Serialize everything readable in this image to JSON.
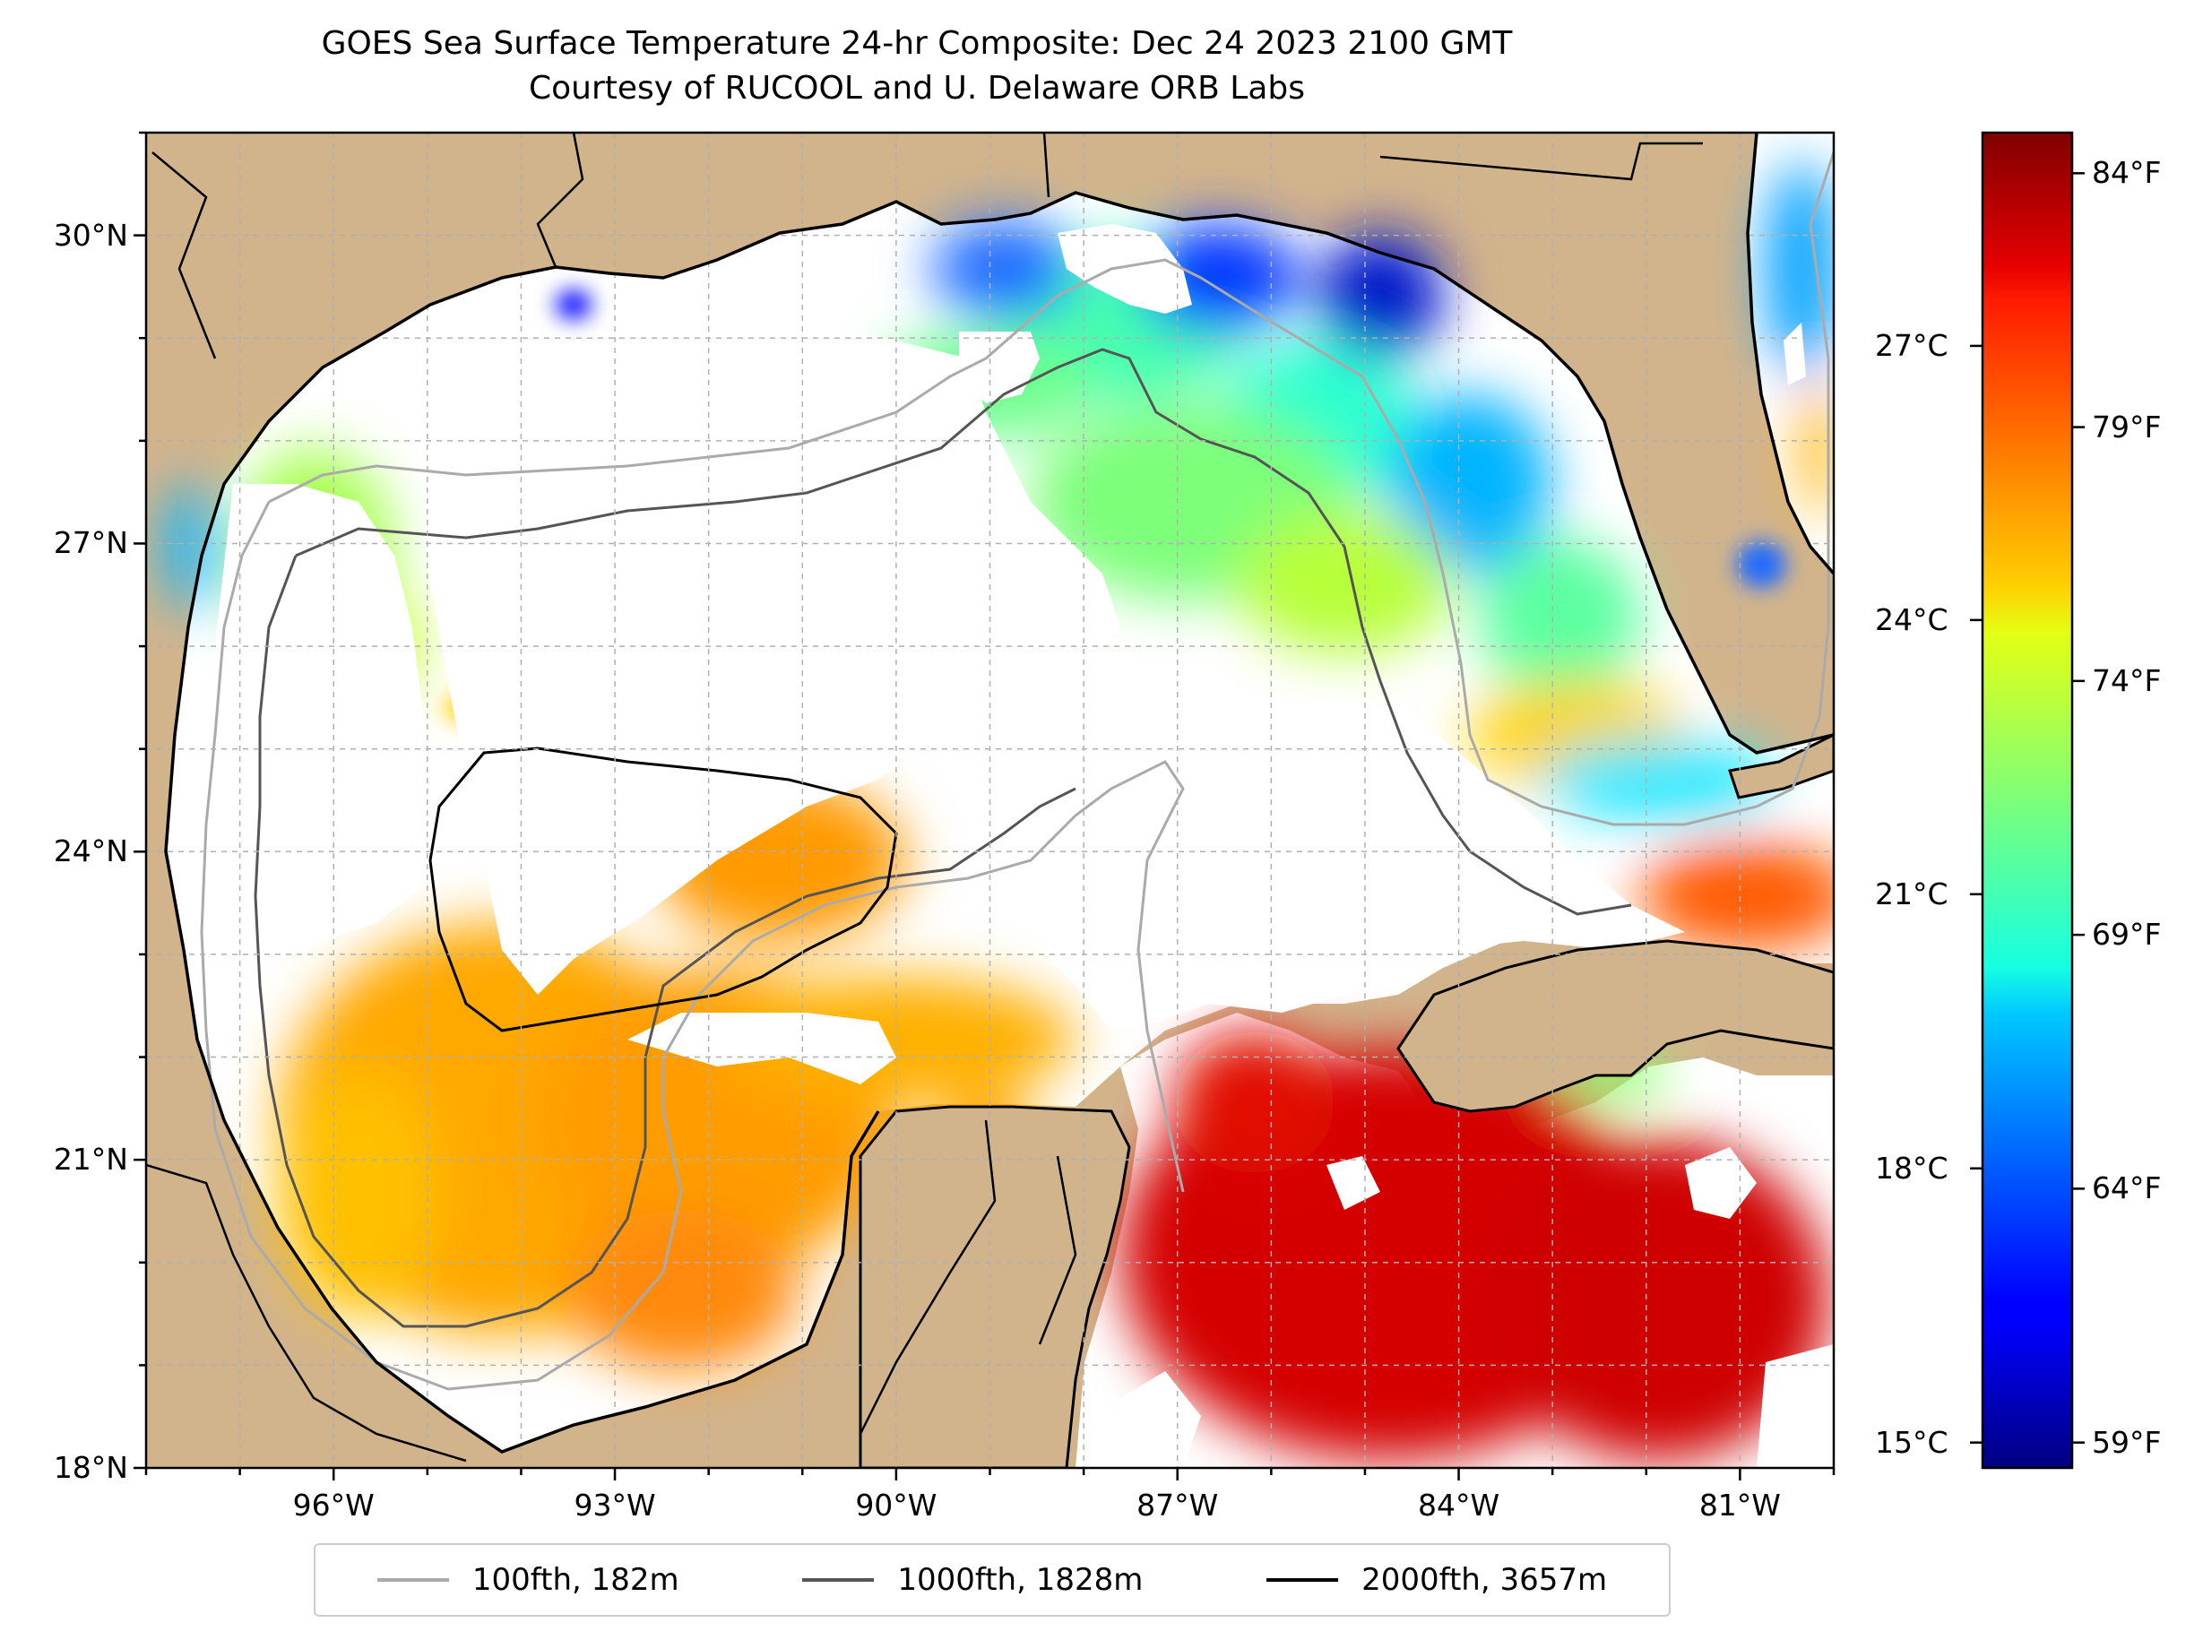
{
  "title": {
    "line1": "GOES Sea Surface Temperature 24-hr Composite: Dec 24 2023 2100 GMT",
    "line2": "Courtesy of RUCOOL and U. Delaware ORB Labs"
  },
  "map": {
    "extent": {
      "lon_min": -98.0,
      "lon_max": -80.0,
      "lat_min": 18.0,
      "lat_max": 31.0
    },
    "lat_ticks": [
      {
        "value": 18,
        "label": "18°N"
      },
      {
        "value": 21,
        "label": "21°N"
      },
      {
        "value": 24,
        "label": "24°N"
      },
      {
        "value": 27,
        "label": "27°N"
      },
      {
        "value": 30,
        "label": "30°N"
      }
    ],
    "lon_ticks": [
      {
        "value": -96,
        "label": "96°W"
      },
      {
        "value": -93,
        "label": "93°W"
      },
      {
        "value": -90,
        "label": "90°W"
      },
      {
        "value": -87,
        "label": "87°W"
      },
      {
        "value": -84,
        "label": "84°W"
      },
      {
        "value": -81,
        "label": "81°W"
      }
    ],
    "colors": {
      "land": "#d2b48c",
      "no_data": "#ffffff",
      "grid": "#b0b0b0",
      "coast": "#000000"
    }
  },
  "colorbar": {
    "colormap": "jet",
    "range_f": [
      58.5,
      84.8
    ],
    "celsius_ticks": [
      {
        "value": 15,
        "label": "15°C"
      },
      {
        "value": 18,
        "label": "18°C"
      },
      {
        "value": 21,
        "label": "21°C"
      },
      {
        "value": 24,
        "label": "24°C"
      },
      {
        "value": 27,
        "label": "27°C"
      }
    ],
    "fahrenheit_ticks": [
      {
        "value": 59,
        "label": "59°F"
      },
      {
        "value": 64,
        "label": "64°F"
      },
      {
        "value": 69,
        "label": "69°F"
      },
      {
        "value": 74,
        "label": "74°F"
      },
      {
        "value": 79,
        "label": "79°F"
      },
      {
        "value": 84,
        "label": "84°F"
      }
    ]
  },
  "legend": {
    "items": [
      {
        "label": "100fth, 182m",
        "color": "#aaaaaa"
      },
      {
        "label": "1000fth, 1828m",
        "color": "#555555"
      },
      {
        "label": "2000fth, 3657m",
        "color": "#000000"
      }
    ]
  }
}
